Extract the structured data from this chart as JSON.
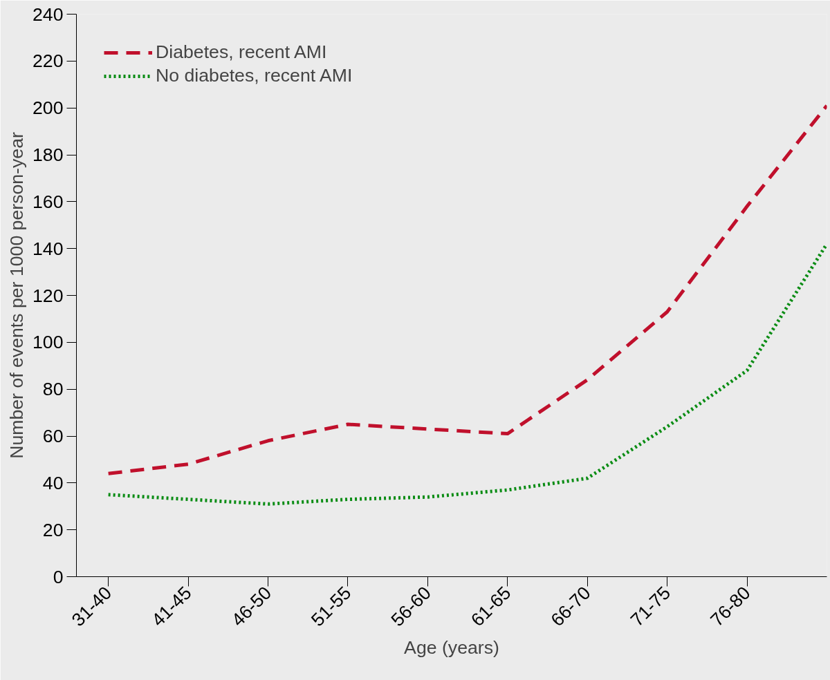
{
  "chart_data": {
    "type": "line",
    "xlabel": "Age (years)",
    "ylabel": "Number of events per 1000 person-year",
    "categories": [
      "31-40",
      "41-45",
      "46-50",
      "51-55",
      "56-60",
      "61-65",
      "66-70",
      "71-75",
      "76-80",
      null
    ],
    "series": [
      {
        "name": "Diabetes, recent AMI",
        "color": "#c0102c",
        "line_style": "dashed",
        "values": [
          44,
          48,
          58,
          65,
          63,
          61,
          84,
          113,
          158,
          201
        ]
      },
      {
        "name": "No diabetes, recent AMI",
        "color": "#0a8c14",
        "line_style": "dotted",
        "values": [
          35,
          33,
          31,
          33,
          34,
          37,
          42,
          64,
          88,
          142
        ]
      }
    ],
    "ylim": [
      0,
      240
    ],
    "yticks": [
      0,
      20,
      40,
      60,
      80,
      100,
      120,
      140,
      160,
      180,
      200,
      220,
      240
    ],
    "grid": false,
    "legend": "top left"
  }
}
